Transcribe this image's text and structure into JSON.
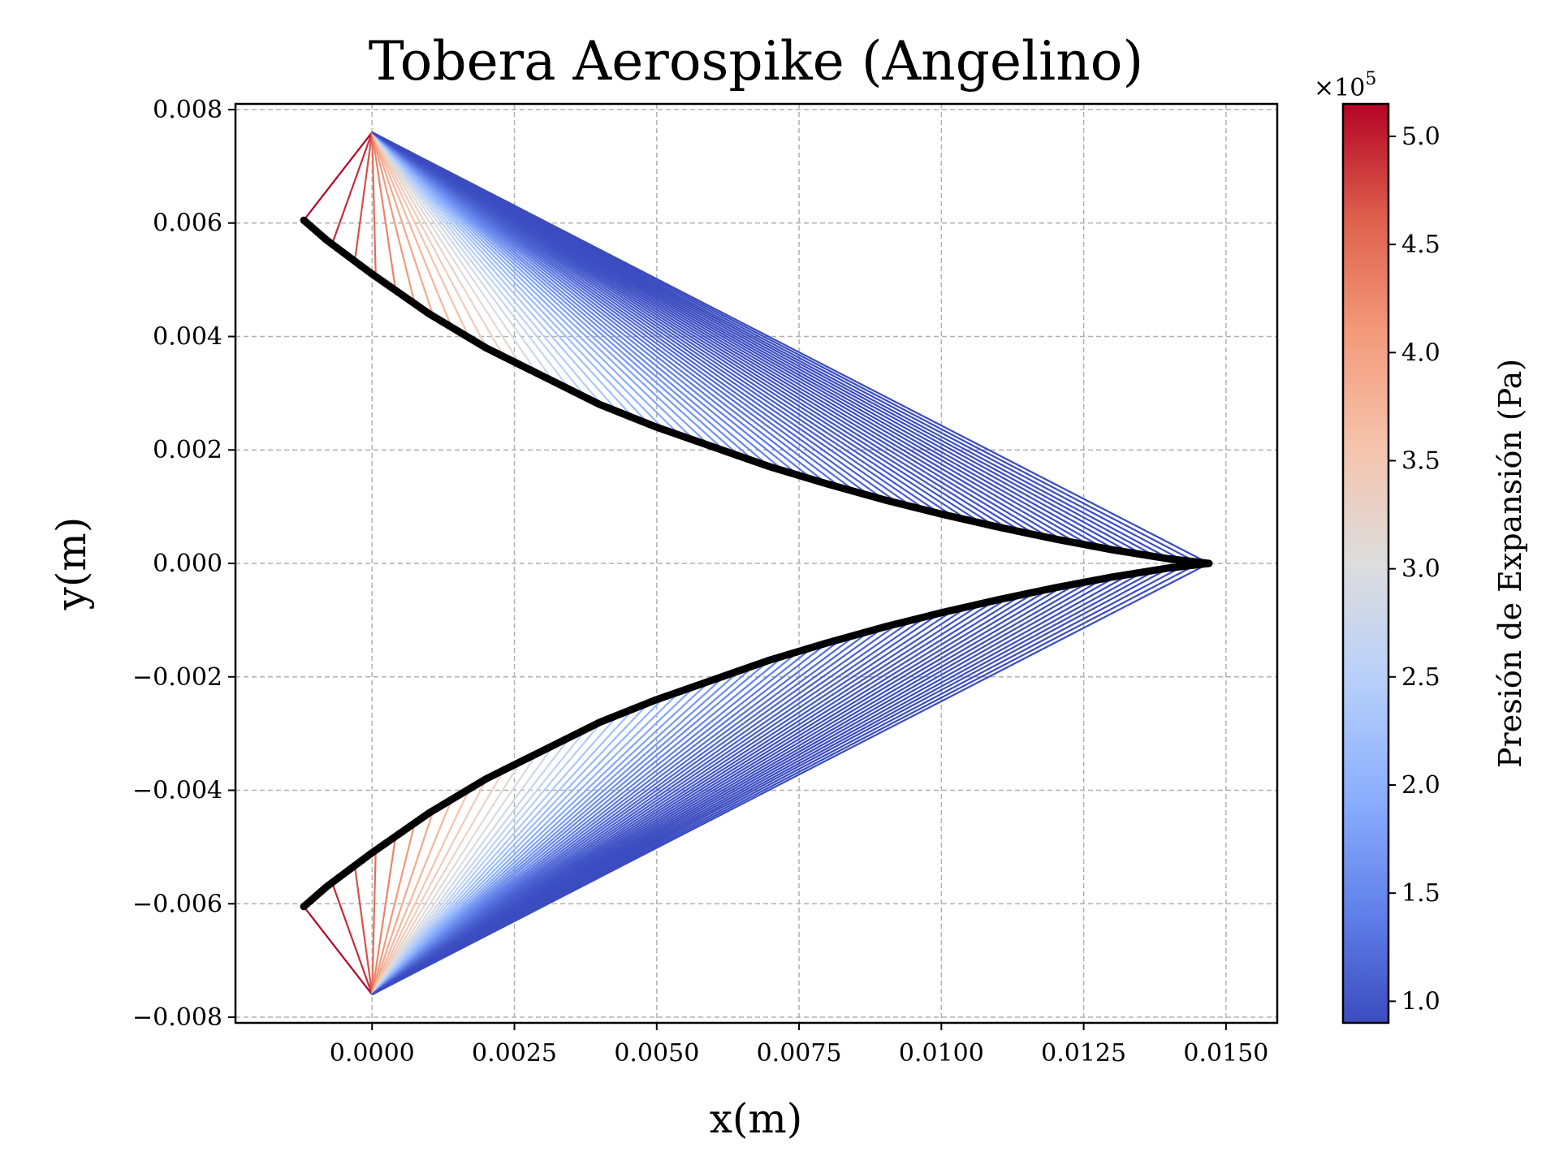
{
  "chart_data": {
    "type": "line",
    "title": "Tobera Aerospike (Angelino)",
    "xlabel": "x(m)",
    "ylabel": "y(m)",
    "xlim": [
      -0.0024,
      0.0159
    ],
    "ylim": [
      -0.0081,
      0.0081
    ],
    "xticks": [
      0.0,
      0.0025,
      0.005,
      0.0075,
      0.01,
      0.0125,
      0.015
    ],
    "xtick_labels": [
      "0.0000",
      "0.0025",
      "0.0050",
      "0.0075",
      "0.0100",
      "0.0125",
      "0.0150"
    ],
    "yticks": [
      -0.008,
      -0.006,
      -0.004,
      -0.002,
      0.0,
      0.002,
      0.004,
      0.006,
      0.008
    ],
    "ytick_labels": [
      "−0.008",
      "−0.006",
      "−0.004",
      "−0.002",
      "0.000",
      "0.002",
      "0.004",
      "0.006",
      "0.008"
    ],
    "grid": true,
    "contour": {
      "x": [
        -0.0012,
        -0.0008,
        -0.0004,
        0.0,
        0.001,
        0.002,
        0.003,
        0.004,
        0.005,
        0.006,
        0.007,
        0.008,
        0.009,
        0.01,
        0.011,
        0.012,
        0.013,
        0.014,
        0.0147
      ],
      "y": [
        0.00605,
        0.0057,
        0.0054,
        0.0051,
        0.0044,
        0.0038,
        0.0033,
        0.0028,
        0.0024,
        0.00205,
        0.0017,
        0.0014,
        0.00112,
        0.00087,
        0.00064,
        0.00043,
        0.00024,
        8e-05,
        0.0
      ],
      "color": "#000000",
      "mirrored": true
    },
    "lip": {
      "x": 0.0,
      "y": 0.0076
    },
    "expansion_lines": {
      "count": 60,
      "colormap": "coolwarm"
    },
    "colorbar": {
      "label": "Presión de Expansión (Pa)",
      "exponent_label": "×10",
      "exponent": "5",
      "range": [
        0.9,
        5.15
      ],
      "ticks": [
        1.0,
        1.5,
        2.0,
        2.5,
        3.0,
        3.5,
        4.0,
        4.5,
        5.0
      ],
      "tick_labels": [
        "1.0",
        "1.5",
        "2.0",
        "2.5",
        "3.0",
        "3.5",
        "4.0",
        "4.5",
        "5.0"
      ],
      "colormap": "coolwarm",
      "colors": {
        "low": "#3b4cc0",
        "mid": "#dddddd",
        "high": "#b40426"
      }
    }
  }
}
